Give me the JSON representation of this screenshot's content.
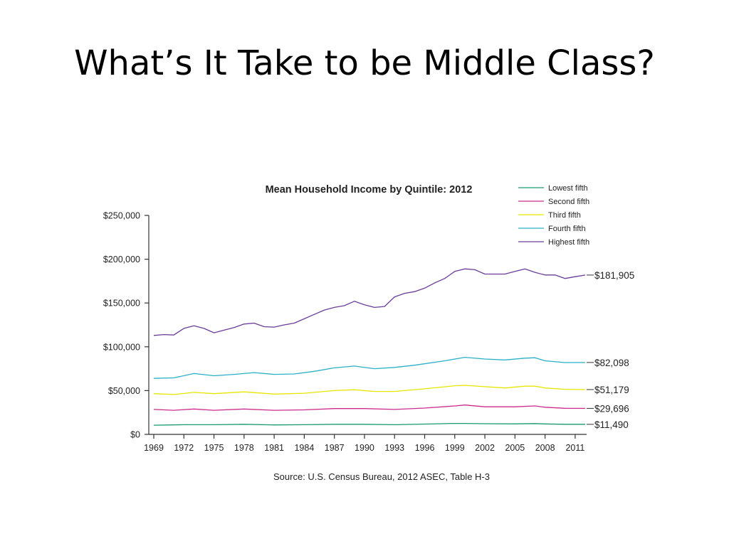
{
  "slide": {
    "title": "What’s It Take to be Middle Class?"
  },
  "chart_data": {
    "type": "line",
    "title": "Mean Household Income by Quintile: 2012",
    "source": "Source: U.S. Census Bureau, 2012 ASEC, Table H-3",
    "xlabel": "",
    "ylabel": "",
    "xlim": [
      1969,
      2012
    ],
    "ylim": [
      0,
      250000
    ],
    "y_ticks": [
      0,
      50000,
      100000,
      150000,
      200000,
      250000
    ],
    "y_tick_labels": [
      "$0",
      "$50,000",
      "$100,000",
      "$150,000",
      "$200,000",
      "$250,000"
    ],
    "x_ticks": [
      1969,
      1972,
      1975,
      1978,
      1981,
      1984,
      1987,
      1990,
      1993,
      1996,
      1999,
      2002,
      2005,
      2008,
      2011
    ],
    "x_tick_labels": [
      "1969",
      "1972",
      "1975",
      "1978",
      "1981",
      "1984",
      "1987",
      "1990",
      "1993",
      "1996",
      "1999",
      "2002",
      "2005",
      "2008",
      "2011"
    ],
    "grid": false,
    "legend_position": "top-right",
    "series": [
      {
        "name": "Lowest fifth",
        "color": "#1a9a6c",
        "end_label": "$11,490",
        "points": [
          [
            1969,
            10500
          ],
          [
            1972,
            11000
          ],
          [
            1975,
            11000
          ],
          [
            1978,
            11500
          ],
          [
            1981,
            10800
          ],
          [
            1984,
            11000
          ],
          [
            1987,
            11500
          ],
          [
            1990,
            11500
          ],
          [
            1993,
            11000
          ],
          [
            1996,
            11800
          ],
          [
            1999,
            12500
          ],
          [
            2000,
            12500
          ],
          [
            2002,
            12200
          ],
          [
            2005,
            12000
          ],
          [
            2007,
            12300
          ],
          [
            2008,
            11900
          ],
          [
            2010,
            11500
          ],
          [
            2012,
            11490
          ]
        ]
      },
      {
        "name": "Second fifth",
        "color": "#cc2b8c",
        "end_label": "$29,696",
        "points": [
          [
            1969,
            28500
          ],
          [
            1971,
            27500
          ],
          [
            1973,
            29000
          ],
          [
            1975,
            27500
          ],
          [
            1978,
            29000
          ],
          [
            1981,
            27500
          ],
          [
            1984,
            28000
          ],
          [
            1987,
            29500
          ],
          [
            1990,
            29500
          ],
          [
            1993,
            28500
          ],
          [
            1996,
            30000
          ],
          [
            1999,
            32500
          ],
          [
            2000,
            33500
          ],
          [
            2002,
            31500
          ],
          [
            2005,
            31500
          ],
          [
            2007,
            32500
          ],
          [
            2008,
            31000
          ],
          [
            2010,
            29800
          ],
          [
            2012,
            29696
          ]
        ]
      },
      {
        "name": "Third fifth",
        "color": "#e6e600",
        "end_label": "$51,179",
        "points": [
          [
            1969,
            46500
          ],
          [
            1971,
            45500
          ],
          [
            1973,
            48000
          ],
          [
            1975,
            46500
          ],
          [
            1978,
            48500
          ],
          [
            1981,
            46000
          ],
          [
            1984,
            47000
          ],
          [
            1987,
            50000
          ],
          [
            1989,
            51000
          ],
          [
            1991,
            49000
          ],
          [
            1993,
            49000
          ],
          [
            1996,
            52000
          ],
          [
            1999,
            55500
          ],
          [
            2000,
            56000
          ],
          [
            2002,
            54500
          ],
          [
            2004,
            53000
          ],
          [
            2006,
            55000
          ],
          [
            2007,
            55000
          ],
          [
            2008,
            53000
          ],
          [
            2010,
            51500
          ],
          [
            2012,
            51179
          ]
        ]
      },
      {
        "name": "Fourth fifth",
        "color": "#2bb0c8",
        "end_label": "$82,098",
        "points": [
          [
            1969,
            64000
          ],
          [
            1971,
            64500
          ],
          [
            1973,
            69500
          ],
          [
            1975,
            67000
          ],
          [
            1977,
            68500
          ],
          [
            1979,
            70500
          ],
          [
            1981,
            68500
          ],
          [
            1983,
            69000
          ],
          [
            1985,
            72000
          ],
          [
            1987,
            76000
          ],
          [
            1989,
            78000
          ],
          [
            1991,
            75000
          ],
          [
            1993,
            76500
          ],
          [
            1995,
            79000
          ],
          [
            1998,
            84000
          ],
          [
            2000,
            88000
          ],
          [
            2002,
            86000
          ],
          [
            2004,
            85000
          ],
          [
            2006,
            87000
          ],
          [
            2007,
            87500
          ],
          [
            2008,
            84000
          ],
          [
            2010,
            82000
          ],
          [
            2012,
            82098
          ]
        ]
      },
      {
        "name": "Highest fifth",
        "color": "#6a3d9a",
        "end_label": "$181,905",
        "points": [
          [
            1969,
            113000
          ],
          [
            1970,
            114000
          ],
          [
            1971,
            113500
          ],
          [
            1972,
            121000
          ],
          [
            1973,
            124000
          ],
          [
            1974,
            121000
          ],
          [
            1975,
            116000
          ],
          [
            1976,
            119000
          ],
          [
            1977,
            122000
          ],
          [
            1978,
            126000
          ],
          [
            1979,
            127000
          ],
          [
            1980,
            123000
          ],
          [
            1981,
            122500
          ],
          [
            1982,
            125000
          ],
          [
            1983,
            127000
          ],
          [
            1984,
            132000
          ],
          [
            1985,
            137000
          ],
          [
            1986,
            142000
          ],
          [
            1987,
            145000
          ],
          [
            1988,
            147000
          ],
          [
            1989,
            152000
          ],
          [
            1990,
            148000
          ],
          [
            1991,
            145000
          ],
          [
            1992,
            146000
          ],
          [
            1993,
            157000
          ],
          [
            1994,
            161000
          ],
          [
            1995,
            163000
          ],
          [
            1996,
            167000
          ],
          [
            1997,
            173000
          ],
          [
            1998,
            178000
          ],
          [
            1999,
            186000
          ],
          [
            2000,
            189000
          ],
          [
            2001,
            188000
          ],
          [
            2002,
            183000
          ],
          [
            2003,
            183000
          ],
          [
            2004,
            183000
          ],
          [
            2005,
            186000
          ],
          [
            2006,
            189000
          ],
          [
            2007,
            185000
          ],
          [
            2008,
            182000
          ],
          [
            2009,
            182000
          ],
          [
            2010,
            178000
          ],
          [
            2011,
            180000
          ],
          [
            2012,
            181905
          ]
        ]
      }
    ]
  }
}
